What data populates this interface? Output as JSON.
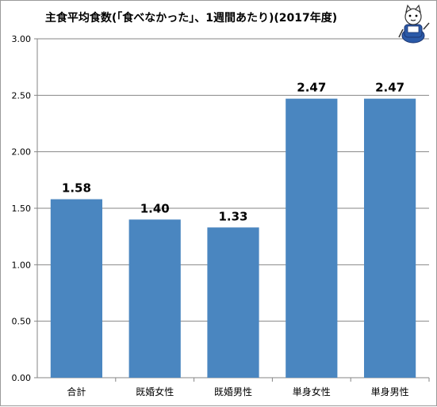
{
  "chart_data": {
    "type": "bar",
    "title": "主食平均食数(「食べなかった」、1週間あたり)(2017年度)",
    "xlabel": "",
    "ylabel": "",
    "categories": [
      "合計",
      "既婚女性",
      "既婚男性",
      "単身女性",
      "単身男性"
    ],
    "values": [
      1.58,
      1.4,
      1.33,
      2.47,
      2.47
    ],
    "value_labels": [
      "1.58",
      "1.40",
      "1.33",
      "2.47",
      "2.47"
    ],
    "y_ticks": [
      "0.00",
      "0.50",
      "1.00",
      "1.50",
      "2.00",
      "2.50",
      "3.00"
    ],
    "ylim": [
      0,
      3.0
    ],
    "grid": true,
    "legend": "none",
    "bar_color": "#4a86c0",
    "grid_color": "#868686"
  },
  "logo": {
    "icon": "cat-mascot-icon"
  }
}
